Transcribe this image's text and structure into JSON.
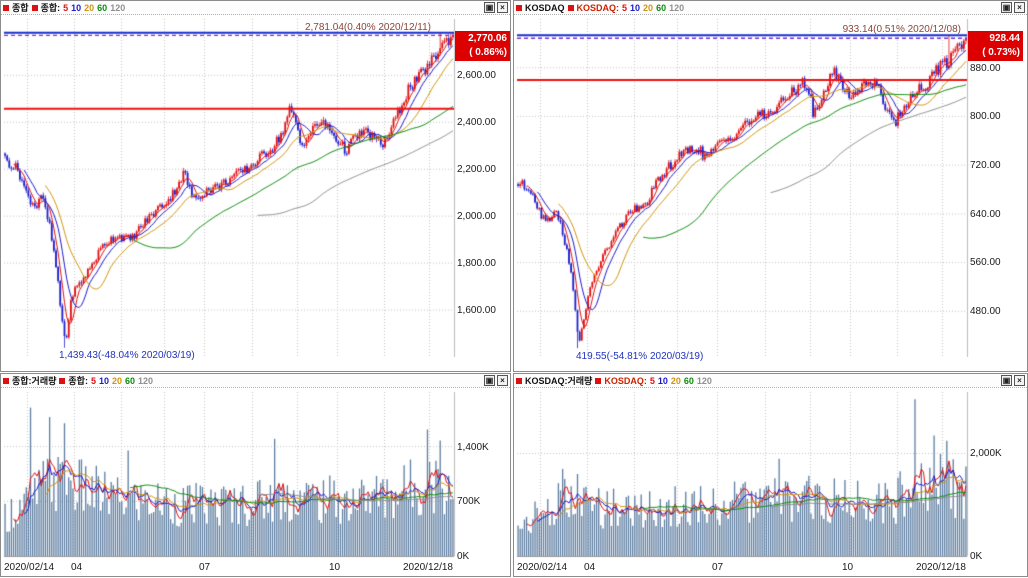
{
  "window_icons": {
    "maximize": "▣",
    "close": "×"
  },
  "colors": {
    "candle_up": "#e01212",
    "candle_down": "#2020cc",
    "ma5": "#e01212",
    "ma10": "#1a1ace",
    "ma20": "#cf950e",
    "ma60": "#0d8c0d",
    "ma120": "#8f8f8f",
    "volume_bar": "#5d7da1",
    "grid": "#c4c4c4",
    "ref_line_red": "#ee1010",
    "ref_line_blue": "#1530cc",
    "current_price_dash": "#7a2fd0",
    "annotation_high": "#8a4538",
    "annotation_low": "#2233bb",
    "price_box_bg": "#dd0000",
    "price_box_text": "#ffffff"
  },
  "panels": [
    {
      "title": "종합",
      "legend_label": "종합:",
      "periods": [
        "5",
        "10",
        "20",
        "60",
        "120"
      ]
    },
    {
      "title": "KOSDAQ",
      "legend_label": "KOSDAQ:",
      "periods": [
        "5",
        "10",
        "20",
        "60",
        "120"
      ]
    },
    {
      "title": "종합:거래량",
      "legend_label": "종합:",
      "periods": [
        "5",
        "10",
        "20",
        "60",
        "120"
      ]
    },
    {
      "title": "KOSDAQ:거래량",
      "legend_label": "KOSDAQ:",
      "periods": [
        "5",
        "10",
        "20",
        "60",
        "120"
      ]
    }
  ],
  "chart_data": [
    {
      "type": "candlestick",
      "name": "KOSPI composite daily",
      "x_range": [
        "2020/02/14",
        "2020/12/18"
      ],
      "ylim": [
        1400,
        2840
      ],
      "ytick_values": [
        2600,
        2400,
        2200,
        2000,
        1800,
        1600
      ],
      "ytick_labels": [
        "2,600.00",
        "2,400.00",
        "2,200.00",
        "2,000.00",
        "1,800.00",
        "1,600.00"
      ],
      "month_t": [
        0.05,
        0.155,
        0.26,
        0.355,
        0.445,
        0.55,
        0.65,
        0.74,
        0.845,
        0.945
      ],
      "anchors_t": [
        0,
        0.03,
        0.05,
        0.07,
        0.08,
        0.1,
        0.115,
        0.125,
        0.135,
        0.15,
        0.17,
        0.19,
        0.22,
        0.25,
        0.28,
        0.31,
        0.34,
        0.37,
        0.4,
        0.42,
        0.45,
        0.48,
        0.51,
        0.54,
        0.57,
        0.6,
        0.62,
        0.635,
        0.65,
        0.66,
        0.68,
        0.7,
        0.72,
        0.74,
        0.76,
        0.78,
        0.8,
        0.82,
        0.84,
        0.86,
        0.88,
        0.9,
        0.92,
        0.94,
        0.96,
        0.975,
        1
      ],
      "anchors_close": [
        2243,
        2195,
        2085,
        2040,
        2100,
        1950,
        1770,
        1590,
        1457,
        1670,
        1720,
        1780,
        1880,
        1920,
        1900,
        1970,
        2030,
        2080,
        2186,
        2070,
        2110,
        2130,
        2170,
        2200,
        2250,
        2300,
        2360,
        2450,
        2400,
        2300,
        2350,
        2400,
        2380,
        2330,
        2280,
        2330,
        2360,
        2340,
        2300,
        2360,
        2450,
        2540,
        2580,
        2630,
        2680,
        2730,
        2770
      ],
      "noise": 0.02,
      "last_close": 2770.06,
      "high_point": {
        "t": 0.972,
        "value": 2781.04
      },
      "low_point": {
        "t": 0.135,
        "value": 1439.43
      },
      "blue_line": 2781.04,
      "red_line": 2458,
      "dashed_line": 2770.06,
      "ma_periods": [
        5,
        10,
        20,
        60,
        120
      ],
      "annotations": {
        "high": "2,781.04(0.40% 2020/12/11)",
        "low": "1,439.43(-48.04% 2020/03/19)"
      },
      "price_box": {
        "price": "2,770.06",
        "change": "( 0.86%)"
      }
    },
    {
      "type": "candlestick",
      "name": "KOSDAQ daily",
      "x_range": [
        "2020/02/14",
        "2020/12/18"
      ],
      "ylim": [
        405,
        960
      ],
      "ytick_values": [
        880,
        800,
        720,
        640,
        560,
        480
      ],
      "ytick_labels": [
        "880.00",
        "800.00",
        "720.00",
        "640.00",
        "560.00",
        "480.00"
      ],
      "month_t": [
        0.05,
        0.155,
        0.26,
        0.355,
        0.445,
        0.55,
        0.65,
        0.74,
        0.845,
        0.945
      ],
      "anchors_t": [
        0,
        0.03,
        0.05,
        0.07,
        0.08,
        0.1,
        0.115,
        0.125,
        0.135,
        0.15,
        0.17,
        0.19,
        0.22,
        0.25,
        0.28,
        0.31,
        0.34,
        0.37,
        0.4,
        0.42,
        0.45,
        0.48,
        0.51,
        0.54,
        0.57,
        0.6,
        0.62,
        0.635,
        0.65,
        0.66,
        0.68,
        0.7,
        0.72,
        0.74,
        0.76,
        0.78,
        0.8,
        0.82,
        0.84,
        0.86,
        0.88,
        0.9,
        0.92,
        0.94,
        0.96,
        0.975,
        1
      ],
      "anchors_close": [
        690,
        680,
        640,
        630,
        650,
        610,
        560,
        500,
        428,
        480,
        540,
        570,
        610,
        645,
        650,
        690,
        720,
        740,
        750,
        730,
        755,
        770,
        790,
        800,
        810,
        830,
        845,
        860,
        840,
        800,
        830,
        875,
        860,
        830,
        845,
        860,
        850,
        820,
        790,
        810,
        840,
        845,
        860,
        880,
        890,
        910,
        928
      ],
      "noise": 0.024,
      "last_close": 928.44,
      "high_point": {
        "t": 0.96,
        "value": 933.14
      },
      "low_point": {
        "t": 0.135,
        "value": 419.55
      },
      "blue_line": 933.14,
      "red_line": 860,
      "dashed_line": 928.44,
      "ma_periods": [
        5,
        10,
        20,
        60,
        120
      ],
      "annotations": {
        "high": "933.14(0.51% 2020/12/08)",
        "low": "419.55(-54.81% 2020/03/19)"
      },
      "price_box": {
        "price": "928.44",
        "change": "( 0.73%)"
      }
    },
    {
      "type": "bar",
      "name": "KOSPI volume (thousands)",
      "ylim": [
        0,
        2100
      ],
      "ytick_values": [
        1400,
        700,
        0
      ],
      "ytick_labels": [
        "1,400K",
        "700K",
        "0K"
      ],
      "month_t": [
        0.05,
        0.155,
        0.26,
        0.355,
        0.445,
        0.55,
        0.65,
        0.74,
        0.845,
        0.945
      ],
      "anchors_t": [
        0,
        0.05,
        0.1,
        0.15,
        0.25,
        0.35,
        0.45,
        0.55,
        0.65,
        0.75,
        0.85,
        0.95,
        1
      ],
      "anchors_v": [
        520,
        680,
        950,
        900,
        720,
        680,
        640,
        700,
        760,
        700,
        780,
        950,
        850
      ],
      "spikes": [
        {
          "t": 0.055,
          "v": 1900
        },
        {
          "t": 0.1,
          "v": 1780
        },
        {
          "t": 0.135,
          "v": 1700
        },
        {
          "t": 0.275,
          "v": 1350
        },
        {
          "t": 0.6,
          "v": 1500
        },
        {
          "t": 0.945,
          "v": 1620
        },
        {
          "t": 0.97,
          "v": 1480
        }
      ],
      "ma_periods": [
        5,
        10,
        20,
        60,
        120
      ],
      "x_labels": [
        "2020/02/14",
        "04",
        "07",
        "10",
        "2020/12/18"
      ]
    },
    {
      "type": "bar",
      "name": "KOSDAQ volume (thousands)",
      "ylim": [
        0,
        3200
      ],
      "ytick_values": [
        2000,
        0
      ],
      "ytick_labels": [
        "2,000K",
        "0K"
      ],
      "month_t": [
        0.05,
        0.155,
        0.26,
        0.355,
        0.445,
        0.55,
        0.65,
        0.74,
        0.845,
        0.945
      ],
      "anchors_t": [
        0,
        0.05,
        0.1,
        0.15,
        0.25,
        0.35,
        0.45,
        0.55,
        0.65,
        0.75,
        0.85,
        0.95,
        1
      ],
      "anchors_v": [
        620,
        820,
        1060,
        1000,
        900,
        950,
        1000,
        1050,
        1100,
        1050,
        1150,
        1400,
        1300
      ],
      "spikes": [
        {
          "t": 0.1,
          "v": 1700
        },
        {
          "t": 0.135,
          "v": 1600
        },
        {
          "t": 0.585,
          "v": 1900
        },
        {
          "t": 0.885,
          "v": 3060
        },
        {
          "t": 0.93,
          "v": 2350
        },
        {
          "t": 0.955,
          "v": 2250
        }
      ],
      "ma_periods": [
        5,
        10,
        20,
        60,
        120
      ],
      "x_labels": [
        "2020/02/14",
        "04",
        "07",
        "10",
        "2020/12/18"
      ]
    }
  ]
}
